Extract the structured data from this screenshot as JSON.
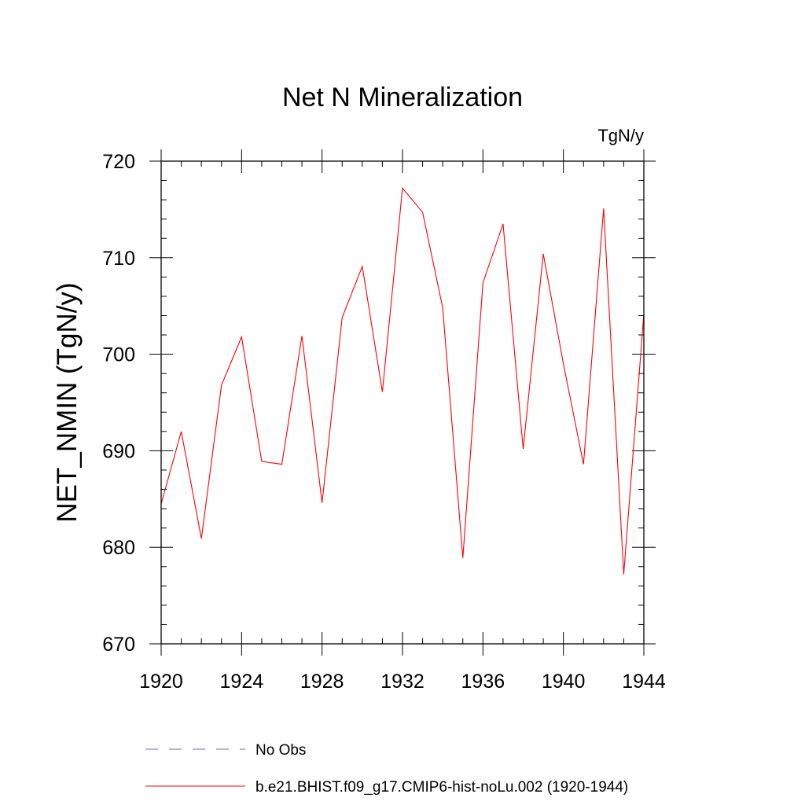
{
  "chart_data": {
    "type": "line",
    "title": "Net N Mineralization",
    "units_label": "TgN/y",
    "xlabel": "",
    "ylabel": "NET_NMIN  (TgN/y)",
    "xlim": [
      1920,
      1944
    ],
    "ylim": [
      670,
      720
    ],
    "x_ticks": [
      1920,
      1924,
      1928,
      1932,
      1936,
      1940,
      1944
    ],
    "x_tick_labels": [
      "1920",
      "1924",
      "1928",
      "1932",
      "1936",
      "1940",
      "1944"
    ],
    "y_ticks": [
      670,
      680,
      690,
      700,
      710,
      720
    ],
    "y_tick_labels": [
      "670",
      "680",
      "690",
      "700",
      "710",
      "720"
    ],
    "grid": false,
    "legend_position": "bottom",
    "series": [
      {
        "name": "b.e21.BHIST.f09_g17.CMIP6-hist-noLu.002 (1920-1944)",
        "color": "#ff0000",
        "style": "solid",
        "x": [
          1920,
          1921,
          1922,
          1923,
          1924,
          1925,
          1926,
          1927,
          1928,
          1929,
          1930,
          1931,
          1932,
          1933,
          1934,
          1935,
          1936,
          1937,
          1938,
          1939,
          1940,
          1941,
          1942,
          1943,
          1944
        ],
        "values": [
          684.5,
          692.0,
          680.9,
          696.8,
          701.8,
          688.9,
          688.6,
          701.9,
          684.6,
          703.8,
          709.1,
          696.1,
          717.2,
          714.7,
          704.8,
          678.9,
          707.4,
          713.5,
          690.2,
          710.4,
          699.0,
          688.6,
          715.1,
          677.2,
          704.2
        ]
      }
    ],
    "legend": [
      {
        "label": "No Obs",
        "color": "#6a6acd",
        "style": "dashed"
      },
      {
        "label": "b.e21.BHIST.f09_g17.CMIP6-hist-noLu.002 (1920-1944)",
        "color": "#ff0000",
        "style": "solid"
      }
    ]
  }
}
